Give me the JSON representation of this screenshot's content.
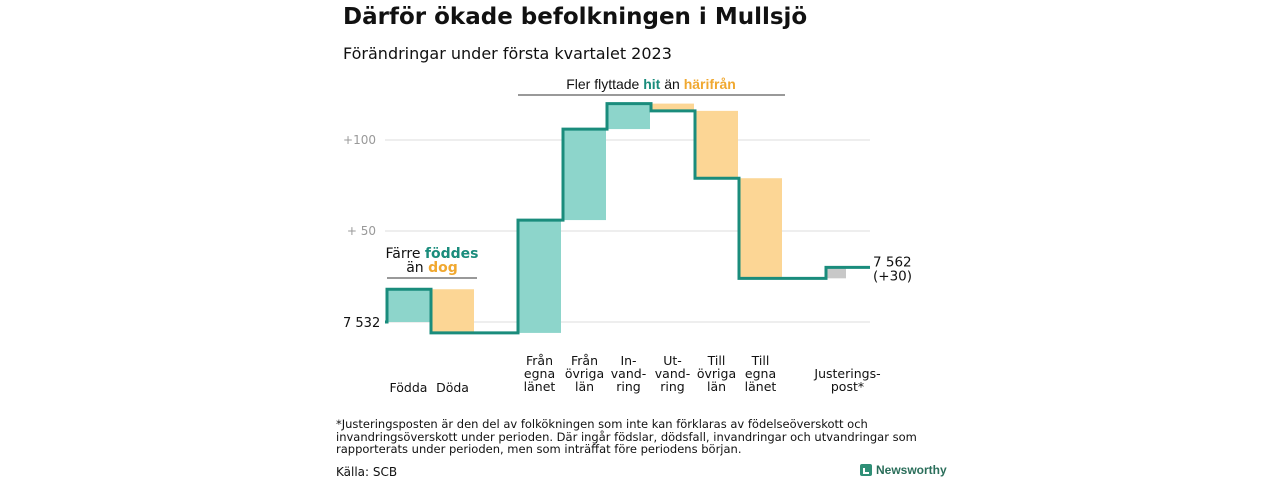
{
  "header": {
    "title": "Därför ökade befolkningen i Mullsjö",
    "subtitle": "Förändringar under första kvartalet 2023"
  },
  "colors": {
    "increase": "#8dd5cb",
    "decrease": "#fcd695",
    "adjustment": "#c8c8c8",
    "line": "#1a8c7c",
    "grid": "#dddddd",
    "axis_text": "#999999",
    "hit_text": "#1a8c7c",
    "harifran_text": "#f0a830"
  },
  "annotations": {
    "births_group": {
      "line1": "Färre ",
      "bold1": "föddes",
      "line2": "än ",
      "bold2": "dog"
    },
    "migration_group": {
      "prefix": "Fler flyttade ",
      "bold1": "hit",
      "mid": " än ",
      "bold2": "härifrån"
    }
  },
  "chart_data": {
    "type": "waterfall",
    "start_value": 7532,
    "start_label": "7 532",
    "end_label": "7 562",
    "end_change_label": "(+30)",
    "y_ticks": [
      {
        "value": 7632,
        "label": "+100"
      },
      {
        "value": 7582,
        "label": "+ 50"
      }
    ],
    "grid": true,
    "steps": [
      {
        "category": [
          "Födda"
        ],
        "change": 18,
        "kind": "increase"
      },
      {
        "category": [
          "Döda"
        ],
        "change": -24,
        "kind": "decrease"
      },
      {
        "category": [
          "Från",
          "egna",
          "länet"
        ],
        "change": 62,
        "kind": "increase"
      },
      {
        "category": [
          "Från",
          "övriga",
          "län"
        ],
        "change": 50,
        "kind": "increase"
      },
      {
        "category": [
          "In-",
          "vand-",
          "ring"
        ],
        "change": 14,
        "kind": "increase"
      },
      {
        "category": [
          "Ut-",
          "vand-",
          "ring"
        ],
        "change": -4,
        "kind": "decrease"
      },
      {
        "category": [
          "Till",
          "övriga",
          "län"
        ],
        "change": -37,
        "kind": "decrease"
      },
      {
        "category": [
          "Till",
          "egna",
          "länet"
        ],
        "change": -55,
        "kind": "decrease"
      },
      {
        "category": [
          "Justerings-",
          "post*"
        ],
        "change": 6,
        "kind": "adjustment"
      }
    ]
  },
  "footer": {
    "footnote": "*Justeringsposten är den del av folkökningen som inte kan förklaras av födelseöverskott och invandringsöverskott under perioden. Där ingår födslar, dödsfall, invandringar och utvandringar som rapporterats under perioden, men som inträffat före periodens början.",
    "source": "Källa: SCB",
    "brand": "Newsworthy"
  }
}
